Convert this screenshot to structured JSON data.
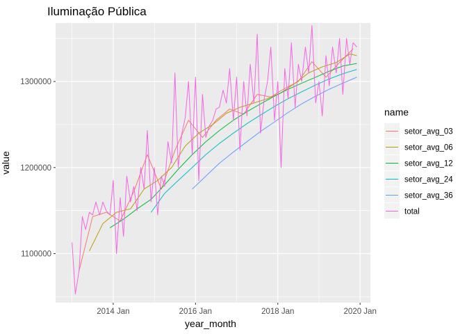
{
  "chart_data": {
    "type": "line",
    "title": "Iluminação Pública",
    "xlabel": "year_month",
    "ylabel": "value",
    "legend_title": "name",
    "legend_position": "right",
    "grid": true,
    "x_tick_labels": [
      "2014 Jan",
      "2016 Jan",
      "2018 Jan",
      "2020 Jan"
    ],
    "x_tick_values": [
      2014.0,
      2016.0,
      2018.0,
      2020.0
    ],
    "xlim": [
      2012.6,
      2020.25
    ],
    "y_tick_labels": [
      "1100000",
      "1200000",
      "1300000"
    ],
    "y_tick_values": [
      1100000,
      1200000,
      1300000
    ],
    "ylim": [
      1043000,
      1368000
    ],
    "series": [
      {
        "name": "setor_avg_03",
        "color": "#F8766D",
        "x": [
          2013.17,
          2013.5,
          2013.83,
          2014.17,
          2014.5,
          2014.83,
          2015.17,
          2015.5,
          2015.83,
          2016.17,
          2016.5,
          2016.83,
          2017.17,
          2017.5,
          2017.83,
          2018.17,
          2018.5,
          2018.83,
          2019.17,
          2019.5,
          2019.83
        ],
        "values": [
          1080000,
          1143000,
          1148000,
          1138000,
          1172000,
          1215000,
          1175000,
          1220000,
          1255000,
          1235000,
          1255000,
          1268000,
          1262000,
          1285000,
          1282000,
          1292000,
          1300000,
          1323000,
          1305000,
          1322000,
          1338000
        ]
      },
      {
        "name": "setor_avg_06",
        "color": "#B79F00",
        "x": [
          2013.42,
          2013.75,
          2014.08,
          2014.42,
          2014.75,
          2015.08,
          2015.42,
          2015.75,
          2016.08,
          2016.42,
          2016.75,
          2017.08,
          2017.42,
          2017.75,
          2018.08,
          2018.42,
          2018.75,
          2019.08,
          2019.42,
          2019.75,
          2019.92
        ],
        "values": [
          1103000,
          1135000,
          1148000,
          1152000,
          1175000,
          1185000,
          1200000,
          1225000,
          1240000,
          1250000,
          1263000,
          1270000,
          1275000,
          1280000,
          1287000,
          1298000,
          1310000,
          1317000,
          1322000,
          1332000,
          1330000
        ]
      },
      {
        "name": "setor_avg_12",
        "color": "#00BA38",
        "x": [
          2013.92,
          2014.25,
          2014.58,
          2014.92,
          2015.25,
          2015.58,
          2015.92,
          2016.25,
          2016.58,
          2016.92,
          2017.25,
          2017.58,
          2017.92,
          2018.25,
          2018.58,
          2018.92,
          2019.25,
          2019.58,
          2019.92
        ],
        "values": [
          1130000,
          1140000,
          1152000,
          1163000,
          1180000,
          1198000,
          1215000,
          1230000,
          1243000,
          1255000,
          1265000,
          1274000,
          1283000,
          1291000,
          1298000,
          1305000,
          1312000,
          1318000,
          1321000
        ]
      },
      {
        "name": "setor_avg_24",
        "color": "#00BFC4",
        "x": [
          2014.92,
          2015.25,
          2015.58,
          2015.92,
          2016.25,
          2016.58,
          2016.92,
          2017.25,
          2017.58,
          2017.92,
          2018.25,
          2018.58,
          2018.92,
          2019.25,
          2019.58,
          2019.92
        ],
        "values": [
          1148000,
          1170000,
          1185000,
          1200000,
          1215000,
          1228000,
          1240000,
          1251000,
          1261000,
          1271000,
          1280000,
          1288000,
          1296000,
          1303000,
          1309000,
          1314000
        ]
      },
      {
        "name": "setor_avg_36",
        "color": "#619CFF",
        "x": [
          2015.92,
          2016.25,
          2016.58,
          2016.92,
          2017.25,
          2017.58,
          2017.92,
          2018.25,
          2018.58,
          2018.92,
          2019.25,
          2019.58,
          2019.92
        ],
        "values": [
          1175000,
          1190000,
          1205000,
          1218000,
          1230000,
          1242000,
          1253000,
          1264000,
          1274000,
          1283000,
          1291000,
          1298000,
          1305000
        ]
      },
      {
        "name": "total",
        "color": "#F564E3",
        "x": [
          2013.0,
          2013.08,
          2013.17,
          2013.25,
          2013.33,
          2013.42,
          2013.5,
          2013.58,
          2013.67,
          2013.75,
          2013.83,
          2013.92,
          2014.0,
          2014.08,
          2014.17,
          2014.25,
          2014.33,
          2014.42,
          2014.5,
          2014.58,
          2014.67,
          2014.75,
          2014.83,
          2014.92,
          2015.0,
          2015.08,
          2015.17,
          2015.25,
          2015.33,
          2015.42,
          2015.5,
          2015.58,
          2015.67,
          2015.75,
          2015.83,
          2015.92,
          2016.0,
          2016.08,
          2016.17,
          2016.25,
          2016.33,
          2016.42,
          2016.5,
          2016.58,
          2016.67,
          2016.75,
          2016.83,
          2016.92,
          2017.0,
          2017.08,
          2017.17,
          2017.25,
          2017.33,
          2017.42,
          2017.5,
          2017.58,
          2017.67,
          2017.75,
          2017.83,
          2017.92,
          2018.0,
          2018.08,
          2018.17,
          2018.25,
          2018.33,
          2018.42,
          2018.5,
          2018.58,
          2018.67,
          2018.75,
          2018.83,
          2018.92,
          2019.0,
          2019.08,
          2019.17,
          2019.25,
          2019.33,
          2019.42,
          2019.5,
          2019.58,
          2019.67,
          2019.75,
          2019.83,
          2019.92
        ],
        "values": [
          1113000,
          1053000,
          1080000,
          1143000,
          1128000,
          1148000,
          1145000,
          1160000,
          1145000,
          1160000,
          1150000,
          1145000,
          1185000,
          1100000,
          1165000,
          1120000,
          1190000,
          1160000,
          1178000,
          1150000,
          1200000,
          1175000,
          1243000,
          1160000,
          1200000,
          1145000,
          1190000,
          1178000,
          1230000,
          1205000,
          1310000,
          1200000,
          1240000,
          1258000,
          1300000,
          1215000,
          1305000,
          1185000,
          1285000,
          1235000,
          1248000,
          1255000,
          1268000,
          1270000,
          1290000,
          1275000,
          1315000,
          1255000,
          1305000,
          1220000,
          1300000,
          1260000,
          1320000,
          1275000,
          1355000,
          1240000,
          1280000,
          1300000,
          1340000,
          1255000,
          1300000,
          1200000,
          1315000,
          1280000,
          1345000,
          1270000,
          1320000,
          1300000,
          1340000,
          1310000,
          1365000,
          1275000,
          1300000,
          1260000,
          1330000,
          1295000,
          1340000,
          1310000,
          1350000,
          1285000,
          1350000,
          1320000,
          1345000,
          1340000
        ]
      }
    ]
  }
}
